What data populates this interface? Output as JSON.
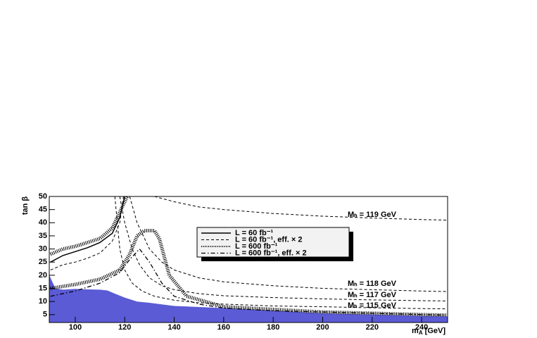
{
  "chart_data": {
    "type": "line",
    "x_label": [
      "m",
      "A",
      " [GeV]"
    ],
    "y_label": "tan β",
    "xlim": [
      89.5,
      250.5
    ],
    "ylim": [
      2,
      50
    ],
    "xticks": [
      100,
      120,
      140,
      160,
      180,
      200,
      220,
      240
    ],
    "yticks": [
      5,
      10,
      15,
      20,
      25,
      30,
      35,
      40,
      45,
      50
    ],
    "excluded": {
      "color": "#5b5bd6",
      "x": [
        89.5,
        90,
        91,
        92,
        95,
        100,
        105,
        110,
        113,
        116,
        120,
        125,
        130,
        140,
        160,
        180,
        200,
        220,
        240,
        250.5
      ],
      "y": [
        20,
        19,
        17,
        15,
        14.5,
        14.8,
        14.6,
        14.5,
        14.2,
        13,
        11.5,
        10,
        9.5,
        8.3,
        7.5,
        6.5,
        5.5,
        5,
        4.5,
        4.3
      ]
    },
    "series": [
      {
        "name": "L = 60 fb⁻¹",
        "style": "solid",
        "color": "#000000",
        "curves": [
          {
            "x": [
              90,
              95,
              100,
              105,
              110,
              115,
              118,
              120
            ],
            "y": [
              25,
              27.5,
              29,
              30.5,
              32.5,
              36,
              42,
              50
            ]
          }
        ]
      },
      {
        "name": "L = 60 fb⁻¹, eff. × 2",
        "style": "dashed",
        "color": "#000000",
        "curves": [
          {
            "x": [
              90,
              95,
              100,
              105,
              110,
              115,
              118,
              119.5
            ],
            "y": [
              22,
              24,
              25,
              26.5,
              28.5,
              33,
              40,
              50
            ]
          }
        ]
      },
      {
        "name": "L = 600 fb⁻¹",
        "style": "dotted",
        "color": "#000000",
        "curves": [
          {
            "x": [
              90,
              95,
              100,
              105,
              110,
              115,
              118,
              121
            ],
            "y": [
              28,
              30,
              31,
              32.5,
              34,
              38,
              44,
              50
            ]
          },
          {
            "x": [
              90,
              100,
              110,
              118,
              122,
              125,
              128,
              132,
              134,
              138,
              145,
              160,
              180,
              200,
              220,
              240,
              250
            ],
            "y": [
              15,
              16.5,
              18.5,
              22,
              28,
              35,
              37,
              37,
              34,
              20,
              12,
              8,
              7,
              6,
              5.5,
              5,
              4.8
            ]
          }
        ]
      },
      {
        "name": "L = 600 fb⁻¹, eff. × 2",
        "style": "dashdot",
        "color": "#000000",
        "curves": [
          {
            "x": [
              90,
              100,
              110,
              118,
              122,
              126,
              130,
              135,
              140,
              150,
              160,
              180,
              200,
              220,
              240,
              250
            ],
            "y": [
              12,
              14,
              17,
              21,
              26,
              30,
              25,
              17,
              12,
              9,
              7.5,
              6.5,
              6,
              5.5,
              5,
              4.8
            ]
          }
        ]
      }
    ],
    "contours": [
      {
        "label": "Mₕ = 119 GeV",
        "x": [
          132,
          140,
          150,
          160,
          180,
          200,
          220,
          240,
          250
        ],
        "y": [
          50,
          48,
          46,
          45,
          43.5,
          42.5,
          41.8,
          41.2,
          41
        ]
      },
      {
        "label": "Mₕ = 118 GeV",
        "x": [
          122,
          125,
          130,
          135,
          140,
          150,
          160,
          180,
          200,
          220,
          240,
          250
        ],
        "y": [
          50,
          40,
          30,
          25,
          22,
          19,
          17.5,
          16,
          15,
          14.5,
          14,
          13.8
        ]
      },
      {
        "label": "Mₕ = 117 GeV",
        "x": [
          118,
          120,
          123,
          126,
          130,
          135,
          140,
          150,
          160,
          180,
          200,
          220,
          240,
          250
        ],
        "y": [
          50,
          40,
          30,
          24,
          19,
          16,
          14.5,
          13,
          12.2,
          11.5,
          11,
          10.6,
          10.3,
          10.2
        ]
      },
      {
        "label": "Mₕ = 115 GeV",
        "x": [
          116,
          117,
          118,
          120,
          123,
          127,
          132,
          140,
          150,
          160,
          180,
          200,
          220,
          240,
          250
        ],
        "y": [
          50,
          40,
          30,
          22,
          17,
          14,
          12,
          10.5,
          9.5,
          9,
          8.3,
          8,
          7.6,
          7.3,
          7.2
        ]
      }
    ]
  }
}
